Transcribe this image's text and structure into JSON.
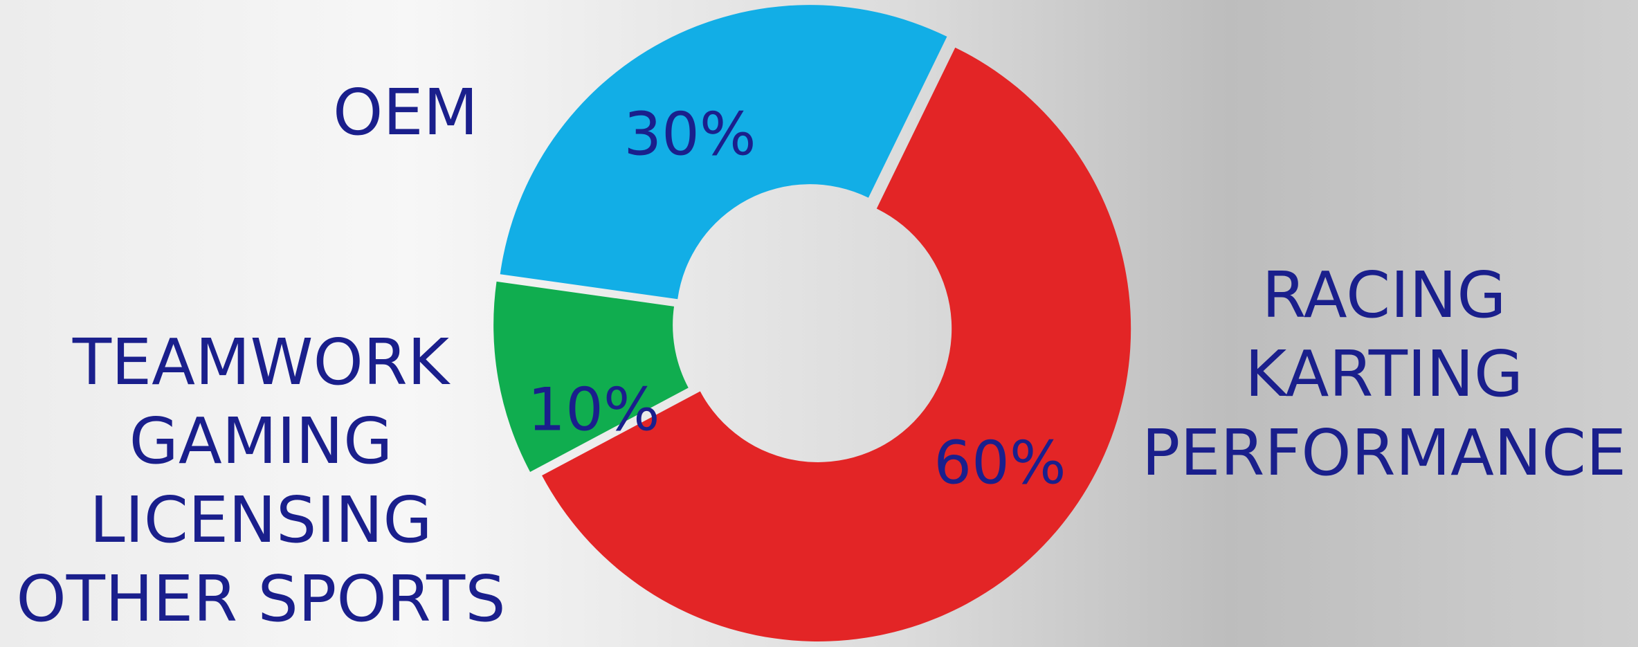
{
  "chart_data": {
    "type": "donut",
    "categories": [
      "RACING\nKARTING\nPERFORMANCE",
      "TEAMWORK\nGAMING\nLICENSING\nOTHER SPORTS",
      "OEM"
    ],
    "values": [
      60,
      10,
      30
    ],
    "value_labels": [
      "60%",
      "10%",
      "30%"
    ],
    "colors": [
      "#e32526",
      "#10ad4f",
      "#12aee6"
    ]
  }
}
